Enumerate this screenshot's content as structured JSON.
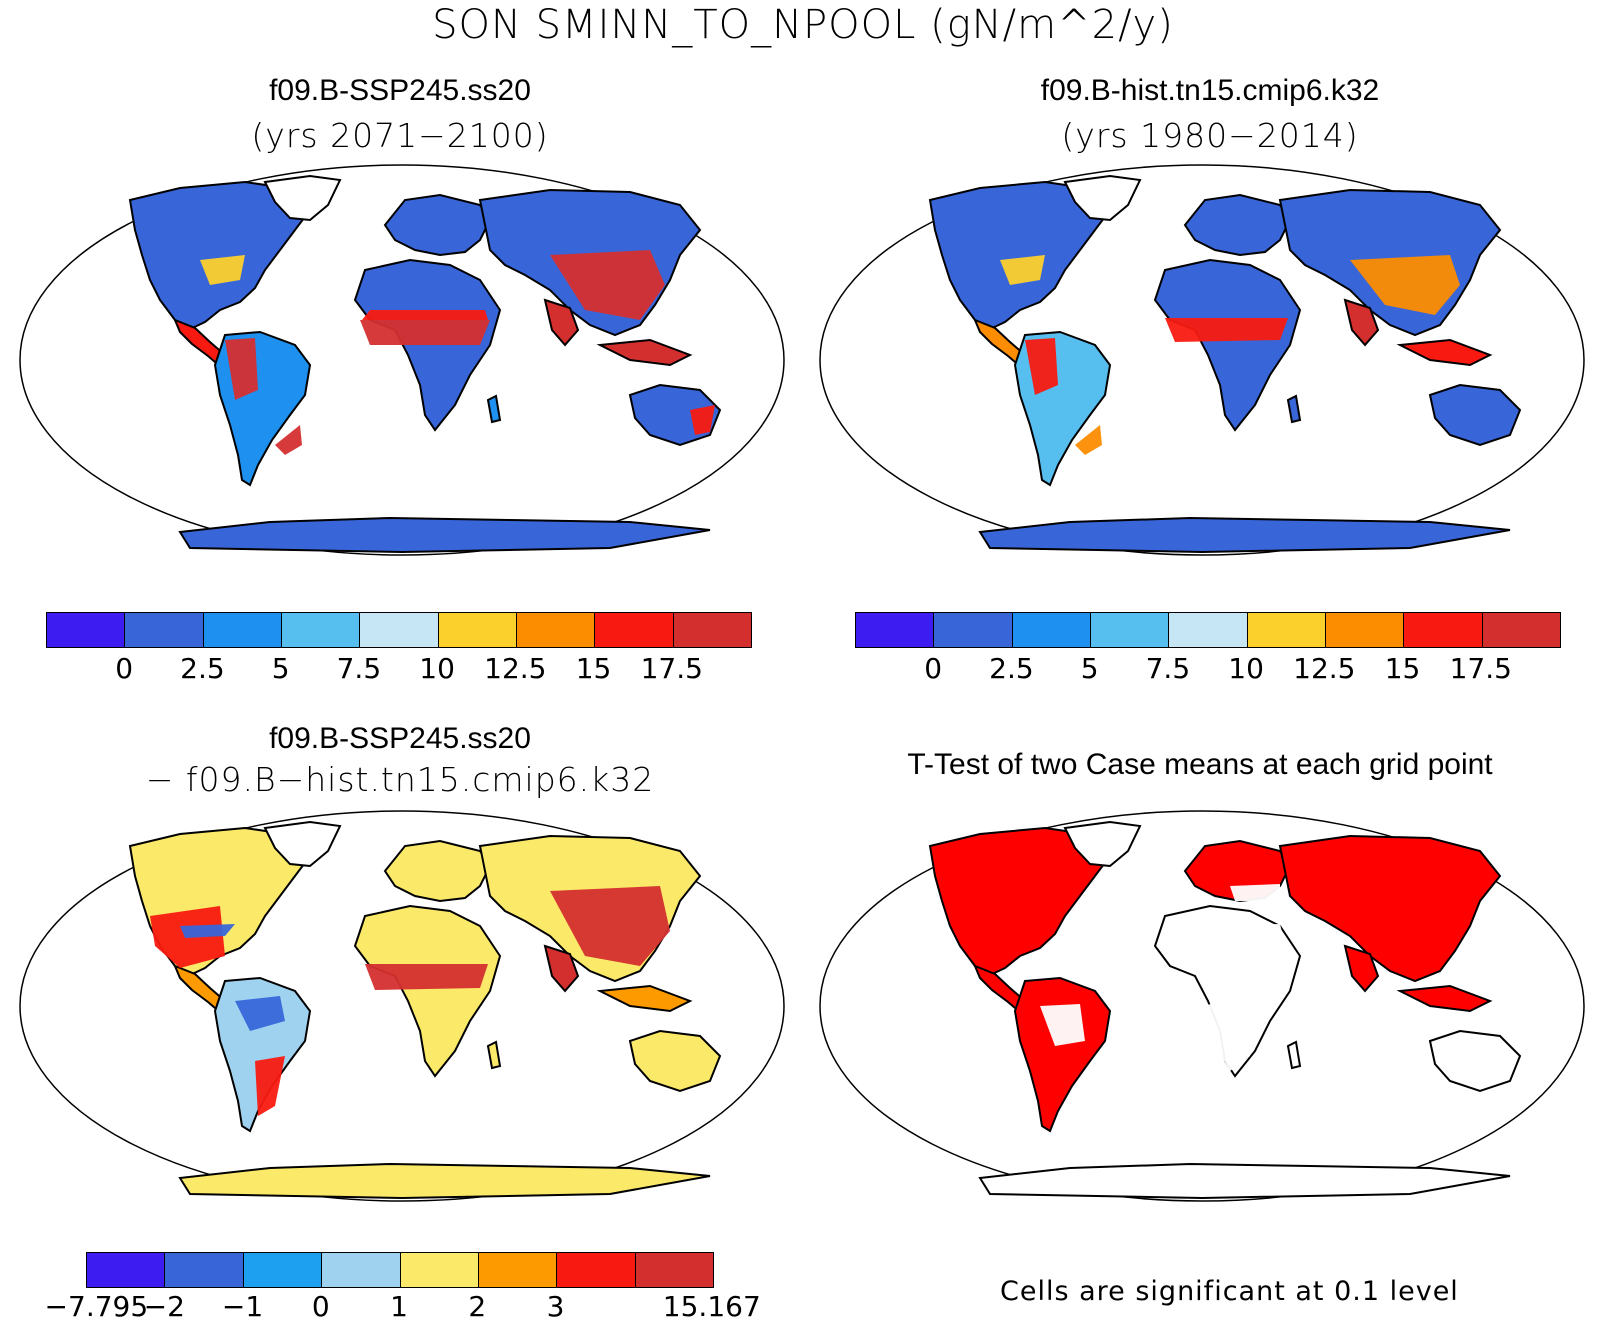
{
  "title": "SON SMINN_TO_NPOOL (gN/m^2/y)",
  "panels": [
    {
      "title": "f09.B-SSP245.ss20",
      "subtitle": "(yrs 2071−2100)"
    },
    {
      "title": "f09.B-hist.tn15.cmip6.k32",
      "subtitle": "(yrs 1980−2014)"
    },
    {
      "title": "f09.B-SSP245.ss20",
      "subtitle": "− f09.B−hist.tn15.cmip6.k32"
    },
    {
      "title": "T-Test of two Case means at each grid point",
      "subtitle": ""
    }
  ],
  "colorbar_abs": {
    "colors": [
      "#3d1cf2",
      "#3866d9",
      "#1e90f0",
      "#56bff0",
      "#c6e6f6",
      "#fcd02c",
      "#fc8c00",
      "#f81a10",
      "#d42f2f"
    ],
    "labels": [
      "0",
      "2.5",
      "5",
      "7.5",
      "10",
      "12.5",
      "15",
      "17.5"
    ]
  },
  "colorbar_diff": {
    "colors": [
      "#3d1cf2",
      "#3866d9",
      "#1ea0f0",
      "#9fd2ef",
      "#fbe96a",
      "#fc9a00",
      "#f81a10",
      "#d42f2f"
    ],
    "labels": [
      "−7.795",
      "−2",
      "−1",
      "0",
      "1",
      "2",
      "3",
      "15.167"
    ]
  },
  "significance_note": "Cells are significant at 0.1 level",
  "map_colors": {
    "ocean": "#ffffff",
    "sig": "#ff0000",
    "coast": "#000000"
  }
}
